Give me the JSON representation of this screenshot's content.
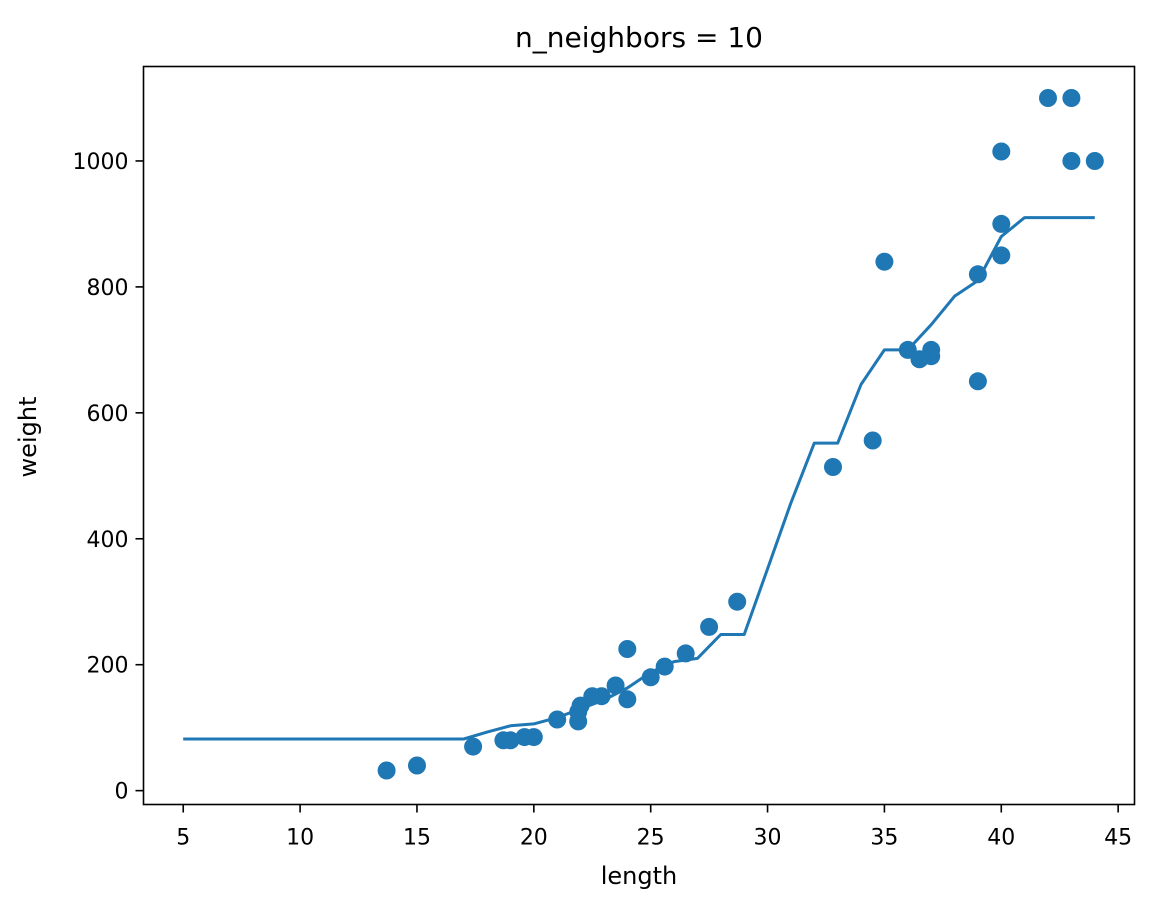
{
  "chart_data": {
    "type": "scatter",
    "title": "n_neighbors = 10",
    "xlabel": "length",
    "ylabel": "weight",
    "xlim": [
      3.3,
      45.7
    ],
    "ylim": [
      -22,
      1150
    ],
    "xticks": [
      5,
      10,
      15,
      20,
      25,
      30,
      35,
      40,
      45
    ],
    "yticks": [
      0,
      200,
      400,
      600,
      800,
      1000
    ],
    "grid": false,
    "color": "#1f77b4",
    "series": [
      {
        "type": "scatter",
        "x": [
          13.7,
          15.0,
          17.4,
          18.7,
          19.0,
          19.6,
          20.0,
          21.0,
          21.9,
          21.9,
          22.0,
          22.5,
          22.9,
          23.5,
          24.0,
          24.0,
          25.0,
          25.6,
          26.5,
          27.5,
          28.7,
          32.8,
          34.5,
          35.0,
          36.0,
          36.5,
          37.0,
          37.0,
          39.0,
          39.0,
          40.0,
          40.0,
          40.0,
          42.0,
          43.0,
          43.0,
          44.0
        ],
        "y": [
          32,
          40,
          70,
          80,
          80,
          85,
          85,
          113,
          110,
          125,
          135,
          150,
          150,
          167,
          145,
          225,
          180,
          197,
          218,
          260,
          300,
          514,
          556,
          840,
          700,
          685,
          690,
          700,
          650,
          820,
          850,
          900,
          1015,
          1100,
          1100,
          1000,
          1000
        ]
      },
      {
        "type": "line",
        "x": [
          5,
          17,
          18,
          19,
          20,
          21,
          22,
          23,
          24,
          25,
          26,
          27,
          28,
          29,
          30,
          31,
          32,
          33,
          34,
          35,
          36,
          37,
          38,
          39,
          40,
          41,
          42,
          43,
          44
        ],
        "y": [
          82,
          82,
          93,
          103,
          106,
          116,
          130,
          144,
          163,
          188,
          205,
          210,
          248,
          248,
          352,
          457,
          552,
          552,
          645,
          700,
          700,
          740,
          785,
          810,
          880,
          910,
          910,
          910,
          910
        ]
      }
    ]
  }
}
